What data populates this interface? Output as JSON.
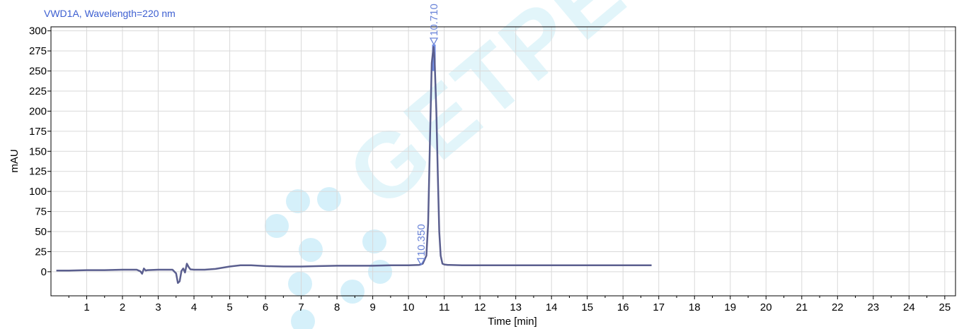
{
  "watermark": "GETPEPTIDE",
  "chart_data": {
    "type": "line",
    "title": "VWD1A, Wavelength=220  nm",
    "xlabel": "Time  [min]",
    "ylabel": "mAU",
    "xlim": [
      0,
      25.3
    ],
    "ylim": [
      -30,
      305
    ],
    "x_ticks": [
      1,
      2,
      3,
      4,
      5,
      6,
      7,
      8,
      9,
      10,
      11,
      12,
      13,
      14,
      15,
      16,
      17,
      18,
      19,
      20,
      21,
      22,
      23,
      24,
      25
    ],
    "y_ticks": [
      0,
      25,
      50,
      75,
      100,
      125,
      150,
      175,
      200,
      225,
      250,
      275,
      300
    ],
    "grid": true,
    "line_color": "#5b5f8f",
    "peak_fill_color": "#6f8be8",
    "series": [
      {
        "x": [
          0.15,
          0.5,
          1.0,
          1.5,
          2.0,
          2.4,
          2.5,
          2.55,
          2.6,
          2.65,
          2.7,
          3.0,
          3.4,
          3.5,
          3.55,
          3.6,
          3.65,
          3.7,
          3.75,
          3.8,
          3.85,
          3.9,
          4.0,
          4.3,
          4.6,
          5.0,
          5.3,
          5.6,
          6.0,
          6.5,
          7.0,
          7.5,
          8.0,
          8.5,
          9.0,
          9.5,
          10.0,
          10.3,
          10.4,
          10.5,
          10.55,
          10.6,
          10.65,
          10.7,
          10.73,
          10.78,
          10.82,
          10.86,
          10.9,
          10.95,
          11.0,
          11.1,
          11.5,
          12.0,
          13.0,
          14.0,
          15.0,
          16.0,
          16.8
        ],
        "y": [
          1.5,
          1.5,
          2.0,
          2.0,
          2.5,
          2.5,
          0.5,
          -2.5,
          4.0,
          1.5,
          2.0,
          2.5,
          2.5,
          -2.0,
          -14.0,
          -12.0,
          1.0,
          4.0,
          -1.0,
          10.0,
          6.0,
          3.0,
          2.5,
          2.5,
          3.5,
          6.5,
          8.0,
          8.0,
          7.0,
          6.5,
          6.5,
          7.0,
          7.5,
          7.5,
          7.5,
          8.0,
          8.0,
          8.5,
          10.0,
          20.0,
          60.0,
          160.0,
          260.0,
          280.0,
          265.0,
          200.0,
          120.0,
          50.0,
          20.0,
          10.0,
          9.0,
          8.5,
          8.0,
          8.0,
          8.0,
          8.0,
          8.0,
          8.0,
          8.0
        ]
      }
    ],
    "peaks": [
      {
        "x": 10.35,
        "label": "10.350",
        "marker_y": 8.5
      },
      {
        "x": 10.71,
        "label": "10.710",
        "marker_y": 283
      }
    ]
  }
}
